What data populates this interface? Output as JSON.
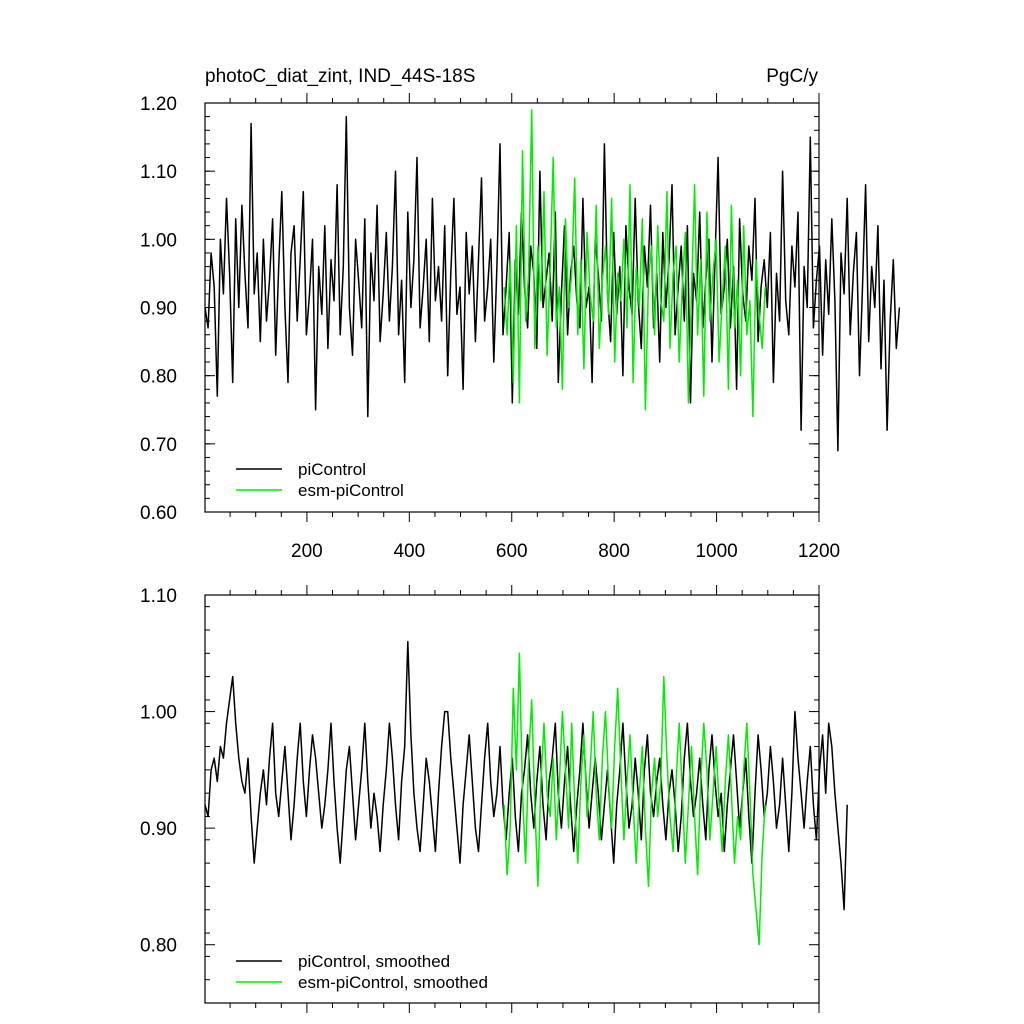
{
  "chart_data": [
    {
      "type": "line",
      "title": "photoC_diat_zint, IND_44S-18S",
      "units": "PgC/y",
      "xlabel": "",
      "ylabel": "",
      "xlim": [
        1,
        1200
      ],
      "ylim": [
        0.6,
        1.2
      ],
      "x_ticks": [
        200,
        400,
        600,
        800,
        1000,
        1200
      ],
      "y_ticks": [
        "0.60",
        "0.70",
        "0.80",
        "0.90",
        "1.00",
        "1.10",
        "1.20"
      ],
      "legend_position": "bottom-left",
      "series": [
        {
          "name": "piControl",
          "color": "#000000",
          "x_start": 1,
          "x_step": 6,
          "values": [
            0.9,
            0.87,
            0.98,
            0.93,
            0.77,
            1.0,
            0.92,
            1.06,
            0.95,
            0.79,
            1.03,
            0.9,
            1.05,
            0.95,
            0.87,
            1.17,
            0.92,
            0.98,
            0.85,
            1.0,
            0.88,
            0.94,
            1.03,
            0.83,
            0.96,
            1.07,
            0.9,
            0.79,
            0.98,
            1.02,
            0.88,
            0.97,
            1.07,
            0.86,
            0.92,
            1.0,
            0.75,
            0.96,
            0.89,
            1.02,
            0.84,
            0.97,
            0.91,
            1.08,
            0.86,
            0.96,
            1.18,
            0.9,
            0.83,
            1.0,
            0.94,
            0.87,
            1.03,
            0.74,
            0.98,
            0.91,
            1.05,
            0.85,
            0.92,
            1.01,
            0.88,
            0.96,
            1.1,
            0.86,
            0.94,
            0.79,
            1.04,
            0.9,
            0.97,
            1.12,
            0.87,
            0.93,
            1.0,
            0.85,
            1.06,
            0.91,
            0.96,
            0.88,
            1.02,
            0.8,
            0.95,
            1.06,
            0.89,
            0.93,
            0.78,
            1.01,
            0.92,
            0.99,
            0.85,
            0.97,
            1.09,
            0.88,
            0.93,
            1.0,
            0.82,
            0.96,
            1.14,
            0.86,
            0.93,
            1.01,
            0.76,
            0.97,
            0.89,
            1.04,
            0.93,
            0.87,
            0.99,
            0.95,
            0.84,
            1.1,
            0.9,
            0.94,
            0.98,
            0.88,
            1.04,
            0.79,
            0.92,
            1.02,
            0.86,
            0.95,
            0.99,
            0.91,
            0.87,
            1.06,
            0.9,
            0.93,
            0.79,
            1.0,
            0.95,
            0.88,
            1.14,
            0.92,
            0.85,
            1.01,
            0.89,
            0.96,
            0.8,
            1.02,
            0.93,
            0.89,
            1.06,
            0.91,
            0.84,
            0.99,
            0.93,
            1.05,
            0.87,
            0.95,
            0.82,
            1.01,
            0.9,
            0.97,
            1.08,
            0.86,
            0.93,
            0.99,
            0.88,
            1.02,
            0.76,
            0.95,
            0.91,
            1.04,
            0.87,
            0.94,
            1.0,
            0.82,
            0.97,
            1.12,
            0.89,
            0.93,
            1.0,
            0.87,
            0.96,
            0.78,
            1.03,
            0.92,
            0.88,
            0.99,
            0.94,
            1.06,
            0.85,
            0.93,
            0.97,
            0.9,
            1.01,
            0.79,
            0.95,
            0.88,
            1.1,
            0.91,
            0.86,
            0.99,
            0.93,
            1.04,
            0.72,
            0.96,
            0.9,
            1.15,
            0.87,
            0.94,
            0.99,
            0.83,
            0.97,
            0.89,
            1.03,
            0.91,
            0.69,
            0.98,
            0.92,
            1.06,
            0.86,
            0.95,
            1.01,
            0.8,
            0.93,
            1.08,
            0.85,
            0.96,
            0.9,
            1.02,
            0.81,
            0.94,
            0.72,
            0.88,
            0.97,
            0.84,
            0.9
          ]
        },
        {
          "name": "esm-piControl",
          "color": "#00ee00",
          "x_start": 585,
          "x_step": 6,
          "values": [
            0.93,
            0.86,
            0.97,
            0.79,
            1.02,
            0.76,
            1.13,
            0.88,
            0.95,
            1.19,
            0.84,
            0.99,
            0.91,
            1.07,
            0.83,
            0.96,
            1.12,
            0.87,
            0.93,
            0.78,
            1.03,
            0.9,
            0.95,
            1.09,
            0.86,
            0.97,
            0.81,
            1.01,
            0.92,
            0.88,
            1.05,
            0.84,
            0.94,
            0.99,
            0.89,
            1.06,
            0.82,
            0.95,
            0.91,
            1.0,
            0.87,
            1.08,
            0.79,
            0.96,
            0.9,
            1.03,
            0.75,
            0.94,
            0.99,
            0.86,
            1.02,
            0.91,
            0.88,
            1.07,
            0.84,
            0.95,
            0.99,
            0.82,
            0.93,
            1.01,
            0.76,
            0.92,
            1.08,
            0.86,
            0.97,
            0.77,
            1.04,
            0.88,
            0.95,
            1.0,
            0.82,
            0.91,
            0.99,
            0.78,
            1.05,
            0.87,
            0.94,
            0.8,
            1.02,
            0.86,
            0.91,
            0.74,
            0.97,
            0.89,
            0.84,
            0.93
          ]
        }
      ]
    },
    {
      "type": "line",
      "title": "",
      "xlabel": "",
      "ylabel": "",
      "xlim": [
        1,
        1200
      ],
      "ylim": [
        0.75,
        1.1
      ],
      "x_ticks": [
        200,
        400,
        600,
        800,
        1000,
        1200
      ],
      "y_ticks": [
        "0.80",
        "0.90",
        "1.00",
        "1.10"
      ],
      "legend_position": "bottom-left",
      "series": [
        {
          "name": "piControl, smoothed",
          "color": "#000000",
          "x_start": 1,
          "x_step": 6,
          "values": [
            0.92,
            0.91,
            0.95,
            0.96,
            0.94,
            0.97,
            0.96,
            0.99,
            1.01,
            1.03,
            0.99,
            0.96,
            0.94,
            0.93,
            0.96,
            0.91,
            0.87,
            0.9,
            0.93,
            0.95,
            0.92,
            0.96,
            0.99,
            0.93,
            0.91,
            0.94,
            0.97,
            0.93,
            0.89,
            0.92,
            0.96,
            0.99,
            0.94,
            0.91,
            0.95,
            0.98,
            0.96,
            0.93,
            0.9,
            0.92,
            0.95,
            0.99,
            0.94,
            0.9,
            0.87,
            0.91,
            0.95,
            0.97,
            0.93,
            0.89,
            0.92,
            0.95,
            0.99,
            0.94,
            0.9,
            0.93,
            0.91,
            0.88,
            0.92,
            0.95,
            0.99,
            0.96,
            0.92,
            0.89,
            0.94,
            0.97,
            1.06,
            0.98,
            0.93,
            0.9,
            0.88,
            0.92,
            0.96,
            0.94,
            0.91,
            0.88,
            0.93,
            0.97,
            1.0,
            1.0,
            0.96,
            0.93,
            0.9,
            0.87,
            0.92,
            0.95,
            0.98,
            0.94,
            0.9,
            0.88,
            0.92,
            0.96,
            0.99,
            0.94,
            0.91,
            0.93,
            0.97,
            0.92,
            0.89,
            0.93,
            0.96,
            0.91,
            0.88,
            0.93,
            0.95,
            0.98,
            0.93,
            0.9,
            0.94,
            0.97,
            0.92,
            0.89,
            0.94,
            0.96,
            0.99,
            0.93,
            0.9,
            0.94,
            0.97,
            0.92,
            0.88,
            0.92,
            0.95,
            0.99,
            0.94,
            0.9,
            0.93,
            0.96,
            0.93,
            0.89,
            0.92,
            0.95,
            0.91,
            0.87,
            0.92,
            0.95,
            0.99,
            0.94,
            0.9,
            0.92,
            0.96,
            0.93,
            0.89,
            0.95,
            0.98,
            0.93,
            0.91,
            0.94,
            0.96,
            0.92,
            0.89,
            0.93,
            0.95,
            0.92,
            0.88,
            0.91,
            0.96,
            0.99,
            0.94,
            0.91,
            0.93,
            0.96,
            0.92,
            0.89,
            0.95,
            0.98,
            0.94,
            0.91,
            0.93,
            0.88,
            0.92,
            0.95,
            0.98,
            0.94,
            0.9,
            0.93,
            0.96,
            0.91,
            0.87,
            0.93,
            0.98,
            0.95,
            0.91,
            0.93,
            0.97,
            0.94,
            0.9,
            0.92,
            0.96,
            0.92,
            0.88,
            0.93,
            1.0,
            0.96,
            0.93,
            0.9,
            0.94,
            0.97,
            0.92,
            0.89,
            0.95,
            0.98,
            0.93,
            0.99,
            0.97,
            0.93,
            0.9,
            0.87,
            0.83,
            0.92
          ]
        },
        {
          "name": "esm-piControl, smoothed",
          "color": "#00ee00",
          "x_start": 585,
          "x_step": 6,
          "values": [
            0.92,
            0.86,
            0.9,
            1.02,
            0.95,
            1.05,
            0.93,
            0.87,
            0.96,
            1.01,
            0.92,
            0.85,
            0.94,
            0.99,
            0.93,
            0.91,
            0.96,
            0.89,
            0.94,
            1.0,
            0.95,
            0.9,
            0.99,
            0.92,
            0.87,
            0.94,
            0.98,
            0.91,
            0.95,
            1.0,
            0.93,
            0.89,
            0.96,
            1.0,
            0.94,
            0.9,
            0.97,
            1.02,
            0.95,
            0.89,
            0.94,
            0.98,
            0.92,
            0.87,
            0.93,
            0.97,
            0.9,
            0.85,
            0.93,
            0.96,
            0.91,
            0.94,
            1.03,
            0.96,
            0.91,
            0.88,
            0.94,
            0.99,
            0.93,
            0.87,
            0.92,
            0.97,
            0.91,
            0.86,
            0.94,
            0.99,
            0.95,
            0.89,
            0.93,
            0.97,
            0.92,
            0.88,
            0.94,
            0.98,
            0.93,
            0.87,
            0.91,
            0.89,
            0.95,
            0.99,
            0.93,
            0.86,
            0.83,
            0.8,
            0.88,
            0.92
          ]
        }
      ]
    }
  ]
}
